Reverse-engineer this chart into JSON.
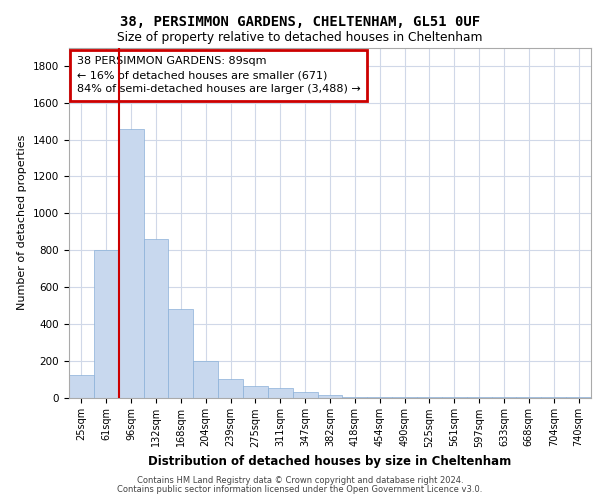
{
  "title": "38, PERSIMMON GARDENS, CHELTENHAM, GL51 0UF",
  "subtitle": "Size of property relative to detached houses in Cheltenham",
  "xlabel": "Distribution of detached houses by size in Cheltenham",
  "ylabel": "Number of detached properties",
  "categories": [
    "25sqm",
    "61sqm",
    "96sqm",
    "132sqm",
    "168sqm",
    "204sqm",
    "239sqm",
    "275sqm",
    "311sqm",
    "347sqm",
    "382sqm",
    "418sqm",
    "454sqm",
    "490sqm",
    "525sqm",
    "561sqm",
    "597sqm",
    "633sqm",
    "668sqm",
    "704sqm",
    "740sqm"
  ],
  "values": [
    120,
    800,
    1460,
    860,
    480,
    200,
    100,
    65,
    50,
    30,
    15,
    5,
    5,
    3,
    2,
    2,
    2,
    2,
    2,
    2,
    2
  ],
  "bar_color": "#c8d8ee",
  "bar_edge_color": "#8ab0d8",
  "grid_color": "#d0d8e8",
  "annotation_line1": "38 PERSIMMON GARDENS: 89sqm",
  "annotation_line2": "← 16% of detached houses are smaller (671)",
  "annotation_line3": "84% of semi-detached houses are larger (3,488) →",
  "vline_x": 2.0,
  "vline_color": "#cc0000",
  "annotation_box_edgecolor": "#cc0000",
  "ylim_max": 1900,
  "yticks": [
    0,
    200,
    400,
    600,
    800,
    1000,
    1200,
    1400,
    1600,
    1800
  ],
  "footer1": "Contains HM Land Registry data © Crown copyright and database right 2024.",
  "footer2": "Contains public sector information licensed under the Open Government Licence v3.0.",
  "plot_bgcolor": "#ffffff",
  "fig_bgcolor": "#ffffff"
}
